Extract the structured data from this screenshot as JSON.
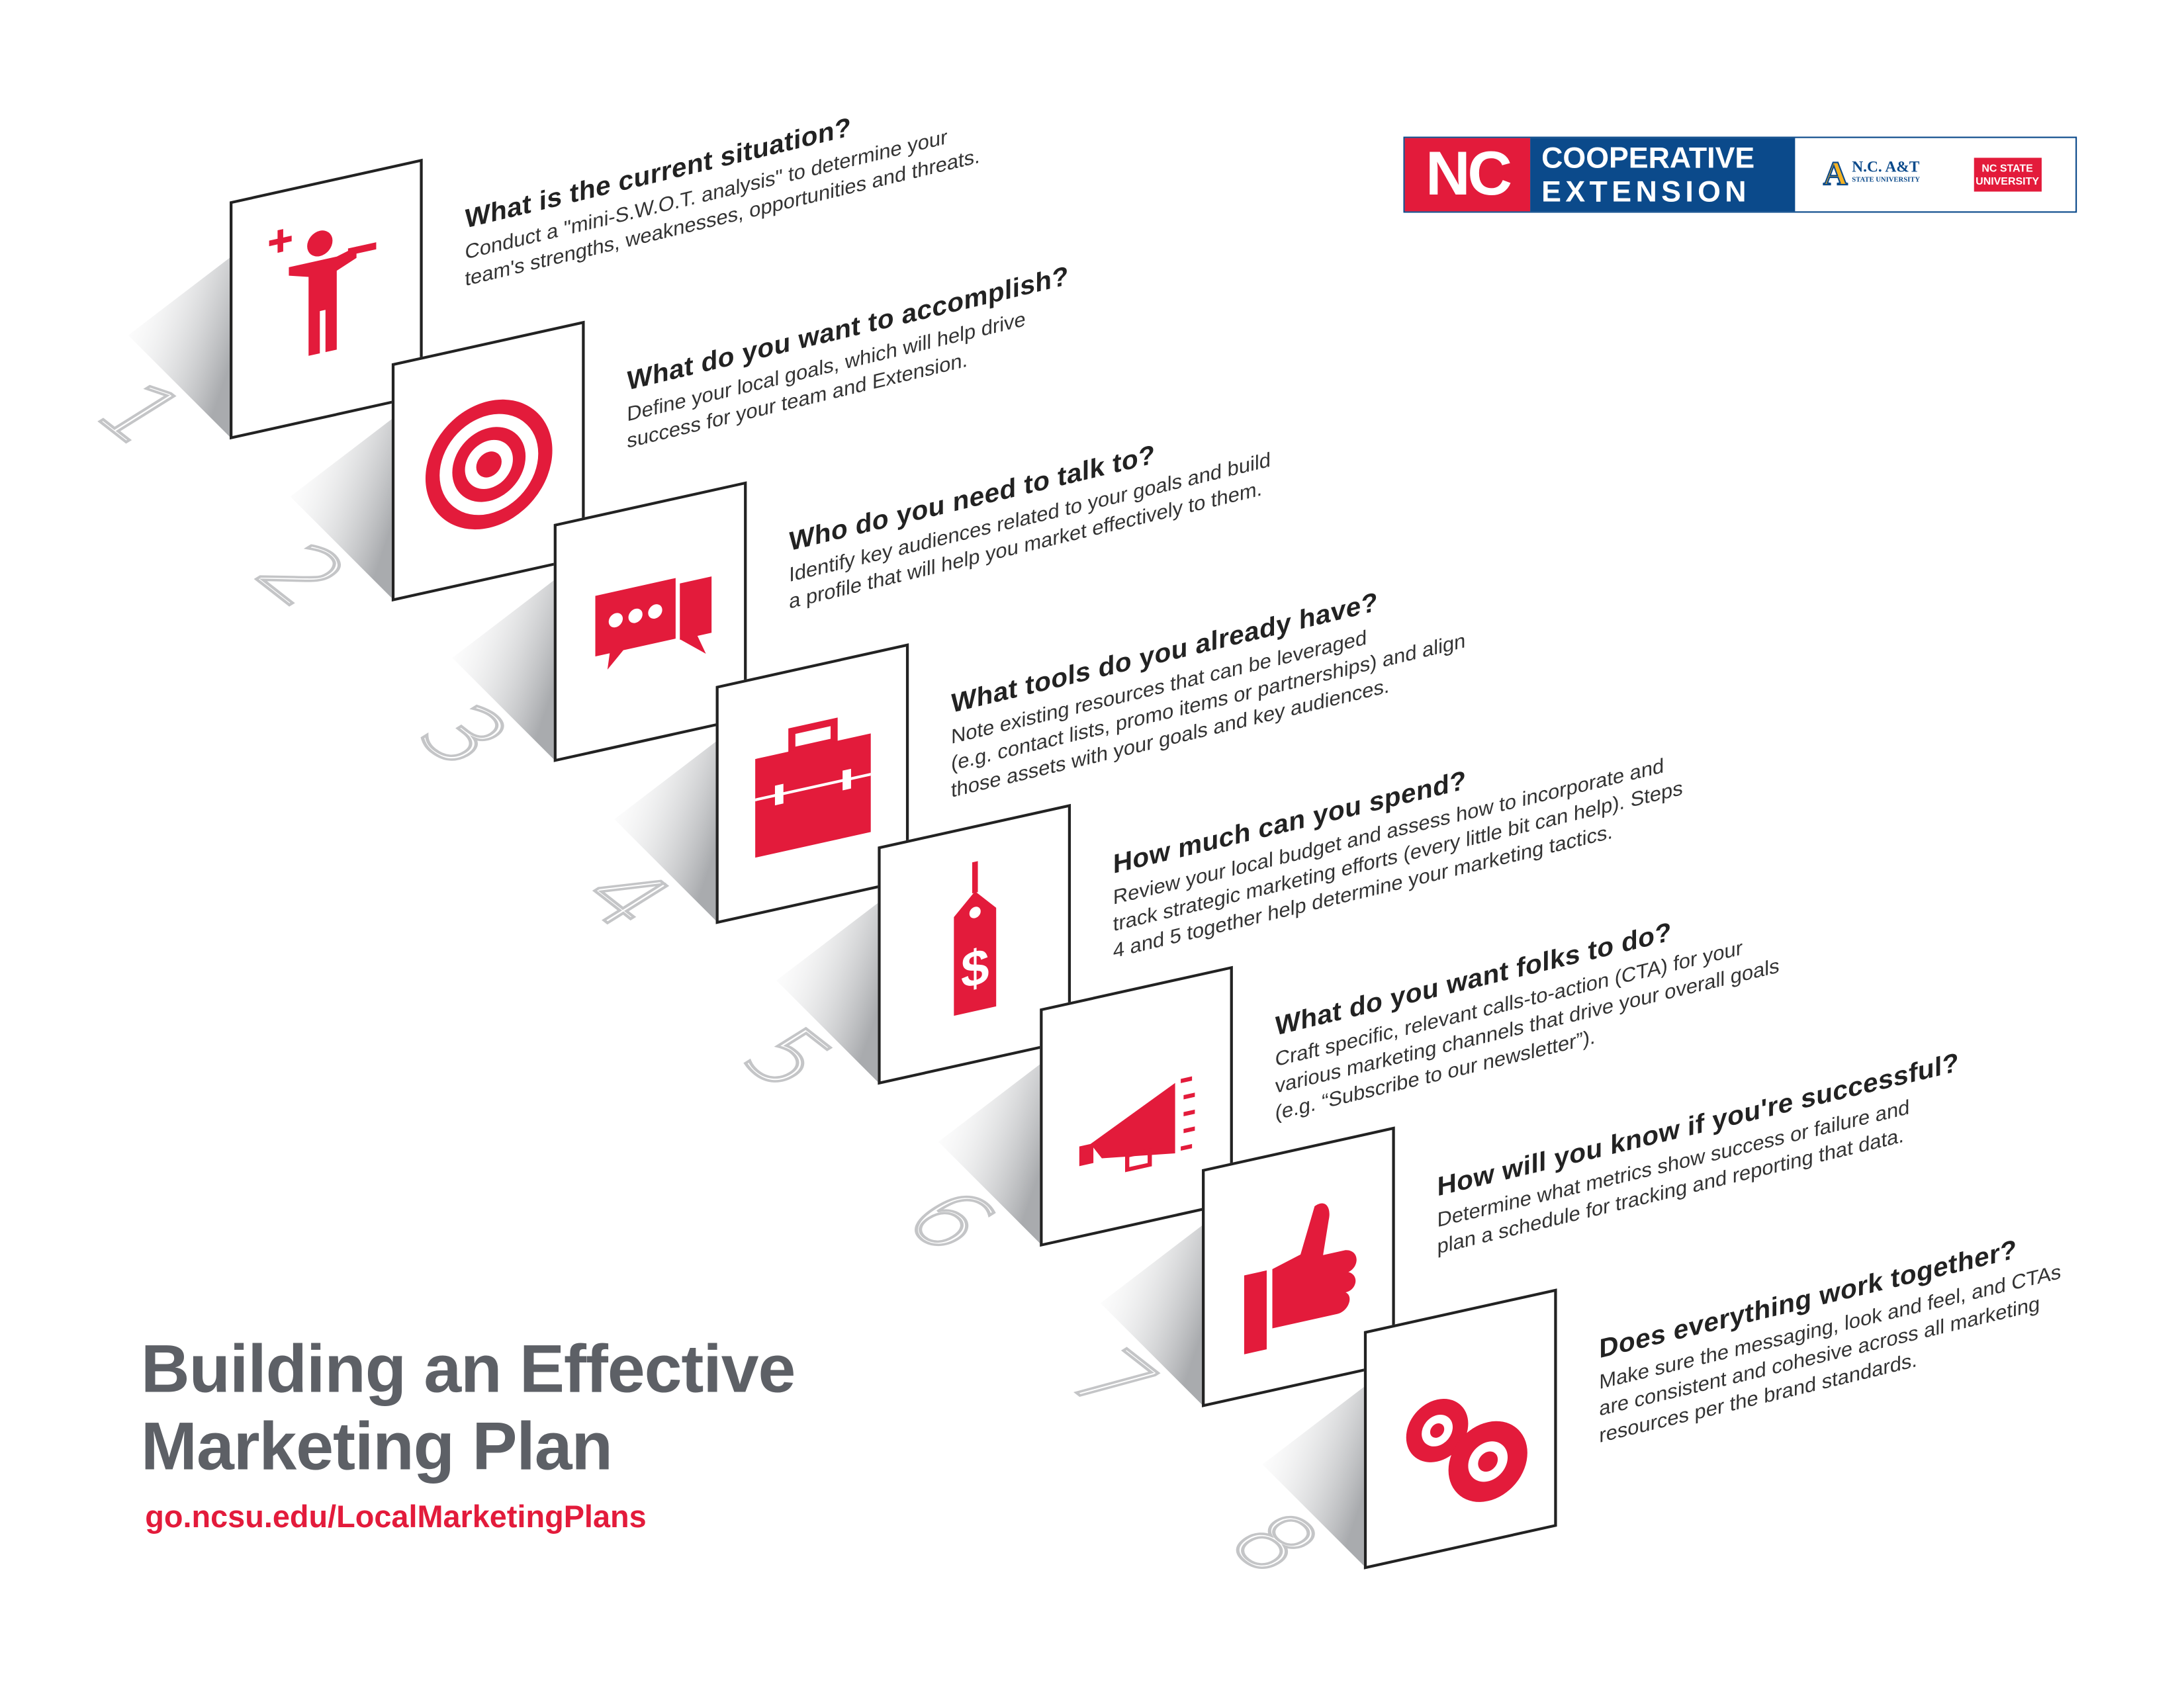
{
  "logo": {
    "nc": "NC",
    "cooperative": "COOPERATIVE",
    "extension": "EXTENSION",
    "ncat_name": "N.C. A&T",
    "ncat_sub": "STATE UNIVERSITY",
    "ncstate_1": "NC STATE",
    "ncstate_2": "UNIVERSITY"
  },
  "title": [
    "Building an Effective",
    "Marketing Plan"
  ],
  "url": "go.ncsu.edu/LocalMarketingPlans",
  "colors": {
    "accent": "#e31b3b",
    "brand_blue": "#0b4a8b",
    "title_gray": "#5d6066",
    "number_gray": "#c4c5c7"
  },
  "steps": [
    {
      "number": "1",
      "icon": "person-icon",
      "question": "What is the current situation?",
      "lines": [
        "Conduct a \"mini-S.W.O.T. analysis\" to determine your",
        "team's strengths, weaknesses, opportunities and threats."
      ]
    },
    {
      "number": "2",
      "icon": "target-icon",
      "question": "What do you want to accomplish?",
      "lines": [
        "Define your local goals, which will help drive",
        "success for your team and Extension."
      ]
    },
    {
      "number": "3",
      "icon": "chat-bubbles-icon",
      "question": "Who do you need to talk to?",
      "lines": [
        "Identify key audiences related to your goals and build",
        "a profile that will help you market effectively to them."
      ]
    },
    {
      "number": "4",
      "icon": "briefcase-icon",
      "question": "What tools do you already have?",
      "lines": [
        "Note existing resources that can be leveraged",
        "(e.g. contact lists, promo items or partnerships) and align",
        "those assets with your goals and key audiences."
      ]
    },
    {
      "number": "5",
      "icon": "price-tag-icon",
      "question": "How much can you spend?",
      "lines": [
        "Review your local budget and assess how to incorporate and",
        "track strategic marketing efforts (every little bit can help). Steps",
        "4 and 5 together help determine your marketing tactics."
      ]
    },
    {
      "number": "6",
      "icon": "megaphone-icon",
      "question": "What do you want folks to do?",
      "lines": [
        "Craft specific, relevant calls-to-action (CTA) for your",
        "various marketing channels that drive your overall goals",
        "(e.g. “Subscribe to our newsletter”)."
      ]
    },
    {
      "number": "7",
      "icon": "thumbs-up-icon",
      "question": "How will you know if you're successful?",
      "lines": [
        "Determine what metrics show success or failure and",
        "plan a schedule for tracking and reporting that data."
      ]
    },
    {
      "number": "8",
      "icon": "gears-icon",
      "question": "Does everything work together?",
      "lines": [
        "Make sure the messaging, look and feel, and CTAs",
        "are consistent and cohesive across all marketing",
        "resources per the brand standards."
      ]
    }
  ]
}
